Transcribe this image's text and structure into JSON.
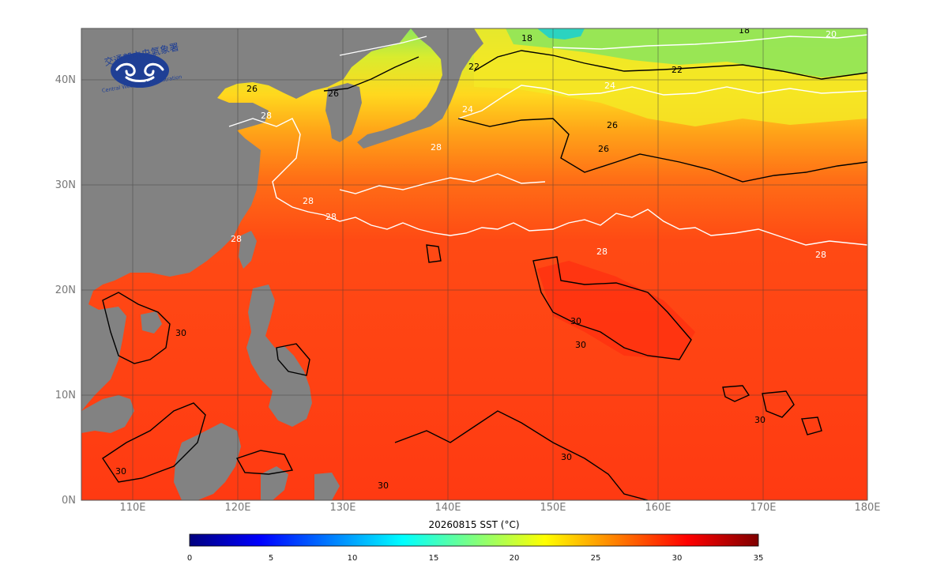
{
  "logo": {
    "org_name_zh": "交通部中央氣象署",
    "org_name_en": "Central Weather Administration"
  },
  "map": {
    "title": "20260815 SST (°C)",
    "x_ticks": [
      "110E",
      "120E",
      "130E",
      "140E",
      "150E",
      "160E",
      "170E",
      "180E"
    ],
    "y_ticks": [
      "0N",
      "10N",
      "20N",
      "30N",
      "40N"
    ],
    "contour_labels": [
      "18",
      "18",
      "20",
      "22",
      "22",
      "24",
      "24",
      "26",
      "26",
      "26",
      "26",
      "28",
      "28",
      "28",
      "28",
      "28",
      "28",
      "28",
      "30",
      "30",
      "30",
      "30",
      "30",
      "30",
      "30"
    ],
    "colors": {
      "land": "#828282",
      "ocean_warm": "#ff3a14",
      "ocean_mid": "#ff8c1a",
      "ocean_cool": "#e9ee2a",
      "ocean_cold": "#6be26a",
      "contour_dark": "#000000",
      "contour_light": "#ffffff"
    }
  },
  "colorbar": {
    "min": 0,
    "max": 35,
    "ticks": [
      "0",
      "5",
      "10",
      "15",
      "20",
      "25",
      "30",
      "35"
    ],
    "stops": [
      "#00007f",
      "#0000ff",
      "#007fff",
      "#00ffff",
      "#7fff7f",
      "#ffff00",
      "#ff7f00",
      "#ff0000",
      "#7f0000"
    ]
  }
}
